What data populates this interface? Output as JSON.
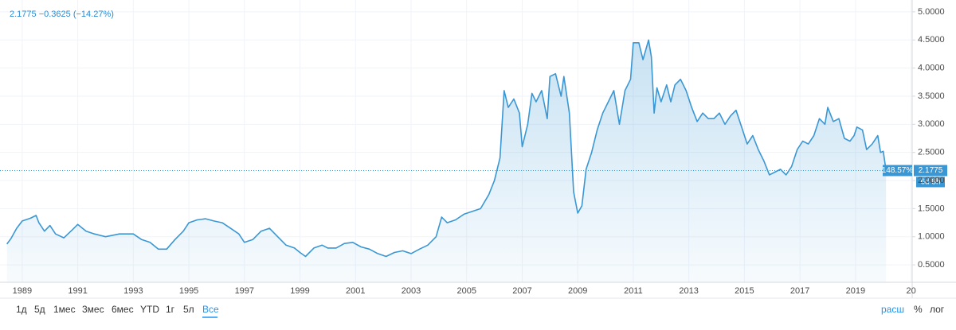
{
  "chart_data": {
    "type": "line",
    "legend_text": "2.1775 −0.3625 (−14.27%)",
    "price_tag": {
      "percent": "148.57%",
      "countdown": "6d 8h"
    },
    "range_buttons": [
      "1д",
      "5д",
      "1мес",
      "3мес",
      "6мес",
      "YTD",
      "1г",
      "5л",
      "Все"
    ],
    "active_range": "Все",
    "scale_buttons": [
      "расш",
      "%",
      "лог"
    ],
    "log_scale": false,
    "grid": true,
    "xlim": [
      1988.43,
      2021.04
    ],
    "ylim": [
      0.19,
      5.14
    ],
    "xticks": [
      1989,
      1991,
      1993,
      1995,
      1997,
      1999,
      2001,
      2003,
      2005,
      2007,
      2009,
      2011,
      2013,
      2015,
      2017,
      2019,
      {
        "value": 2021,
        "label": "20"
      }
    ],
    "yticks": [
      {
        "value": 0.5,
        "label": "0.5000"
      },
      {
        "value": 1,
        "label": "1.0000"
      },
      {
        "value": 1.5,
        "label": "1.5000"
      },
      {
        "value": 2,
        "label": "2.0000"
      },
      {
        "value": 2.5,
        "label": "2.5000"
      },
      {
        "value": 3,
        "label": "3.0000"
      },
      {
        "value": 3.5,
        "label": "3.5000"
      },
      {
        "value": 4,
        "label": "4.0000"
      },
      {
        "value": 4.5,
        "label": "4.5000"
      },
      {
        "value": 5,
        "label": "5.0000"
      }
    ],
    "series": [
      {
        "color": "#3a97d4",
        "x": [
          1988.45,
          1988.6,
          1988.8,
          1989.0,
          1989.3,
          1989.5,
          1989.6,
          1989.8,
          1990.0,
          1990.2,
          1990.5,
          1990.8,
          1991.0,
          1991.3,
          1991.6,
          1992.0,
          1992.5,
          1993.0,
          1993.3,
          1993.6,
          1993.9,
          1994.2,
          1994.5,
          1994.8,
          1995.0,
          1995.3,
          1995.6,
          1995.9,
          1996.2,
          1996.5,
          1996.8,
          1997.0,
          1997.3,
          1997.6,
          1997.9,
          1998.2,
          1998.5,
          1998.8,
          1999.0,
          1999.2,
          1999.5,
          1999.8,
          2000.0,
          2000.3,
          2000.6,
          2000.9,
          2001.2,
          2001.5,
          2001.8,
          2002.1,
          2002.4,
          2002.7,
          2003.0,
          2003.3,
          2003.6,
          2003.9,
          2004.1,
          2004.3,
          2004.6,
          2004.9,
          2005.2,
          2005.5,
          2005.8,
          2006.0,
          2006.2,
          2006.35,
          2006.5,
          2006.7,
          2006.9,
          2007.0,
          2007.2,
          2007.35,
          2007.5,
          2007.7,
          2007.9,
          2008.0,
          2008.2,
          2008.4,
          2008.5,
          2008.7,
          2008.85,
          2009.0,
          2009.15,
          2009.3,
          2009.5,
          2009.7,
          2009.9,
          2010.1,
          2010.3,
          2010.5,
          2010.7,
          2010.9,
          2011.0,
          2011.2,
          2011.35,
          2011.55,
          2011.65,
          2011.75,
          2011.85,
          2012.0,
          2012.2,
          2012.35,
          2012.5,
          2012.7,
          2012.9,
          2013.1,
          2013.3,
          2013.5,
          2013.7,
          2013.9,
          2014.1,
          2014.3,
          2014.5,
          2014.7,
          2014.9,
          2015.1,
          2015.3,
          2015.5,
          2015.7,
          2015.9,
          2016.1,
          2016.3,
          2016.5,
          2016.7,
          2016.9,
          2017.1,
          2017.3,
          2017.5,
          2017.7,
          2017.9,
          2018.0,
          2018.2,
          2018.4,
          2018.6,
          2018.8,
          2018.95,
          2019.05,
          2019.25,
          2019.4,
          2019.6,
          2019.8,
          2019.9,
          2020.0,
          2020.1
        ],
        "values": [
          0.87,
          0.97,
          1.15,
          1.28,
          1.33,
          1.38,
          1.25,
          1.1,
          1.2,
          1.05,
          0.98,
          1.12,
          1.22,
          1.1,
          1.05,
          1.0,
          1.05,
          1.05,
          0.95,
          0.9,
          0.78,
          0.78,
          0.95,
          1.1,
          1.25,
          1.3,
          1.32,
          1.28,
          1.25,
          1.15,
          1.05,
          0.9,
          0.95,
          1.1,
          1.15,
          1.0,
          0.85,
          0.8,
          0.72,
          0.65,
          0.8,
          0.85,
          0.8,
          0.8,
          0.88,
          0.9,
          0.82,
          0.78,
          0.7,
          0.65,
          0.72,
          0.75,
          0.7,
          0.78,
          0.85,
          1.0,
          1.35,
          1.25,
          1.3,
          1.4,
          1.45,
          1.5,
          1.75,
          2.0,
          2.4,
          3.6,
          3.3,
          3.45,
          3.2,
          2.6,
          3.0,
          3.55,
          3.4,
          3.6,
          3.1,
          3.85,
          3.9,
          3.5,
          3.85,
          3.2,
          1.8,
          1.42,
          1.55,
          2.2,
          2.5,
          2.9,
          3.2,
          3.4,
          3.6,
          3.0,
          3.6,
          3.8,
          4.45,
          4.45,
          4.15,
          4.5,
          4.2,
          3.2,
          3.65,
          3.4,
          3.7,
          3.4,
          3.7,
          3.8,
          3.6,
          3.3,
          3.05,
          3.2,
          3.1,
          3.1,
          3.2,
          3.0,
          3.15,
          3.25,
          2.95,
          2.65,
          2.8,
          2.55,
          2.35,
          2.1,
          2.15,
          2.2,
          2.1,
          2.25,
          2.55,
          2.7,
          2.65,
          2.8,
          3.1,
          3.0,
          3.3,
          3.05,
          3.1,
          2.75,
          2.7,
          2.8,
          2.95,
          2.9,
          2.55,
          2.65,
          2.8,
          2.5,
          2.52,
          2.1775
        ]
      }
    ]
  }
}
